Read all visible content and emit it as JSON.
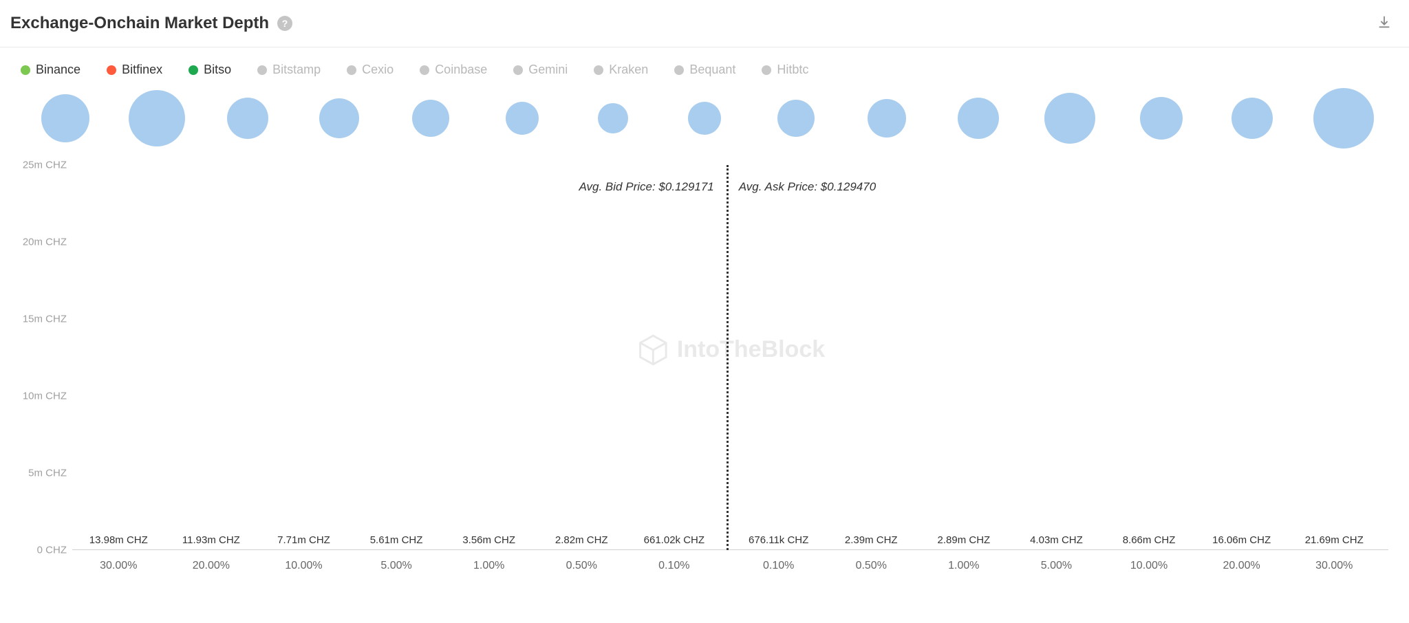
{
  "header": {
    "title": "Exchange-Onchain Market Depth",
    "help_tooltip": "?",
    "download_label": "Download"
  },
  "legend": [
    {
      "label": "Binance",
      "color": "#7cc850",
      "active": true
    },
    {
      "label": "Bitfinex",
      "color": "#ff5a3c",
      "active": true
    },
    {
      "label": "Bitso",
      "color": "#1ea850",
      "active": true
    },
    {
      "label": "Bitstamp",
      "color": "#c8c8c8",
      "active": false
    },
    {
      "label": "Cexio",
      "color": "#c8c8c8",
      "active": false
    },
    {
      "label": "Coinbase",
      "color": "#c8c8c8",
      "active": false
    },
    {
      "label": "Gemini",
      "color": "#c8c8c8",
      "active": false
    },
    {
      "label": "Kraken",
      "color": "#c8c8c8",
      "active": false
    },
    {
      "label": "Bequant",
      "color": "#c8c8c8",
      "active": false
    },
    {
      "label": "Hitbtc",
      "color": "#c8c8c8",
      "active": false
    }
  ],
  "bubbles": {
    "color": "#a9cdee",
    "items": [
      {
        "size": 70
      },
      {
        "size": 82
      },
      {
        "size": 60
      },
      {
        "size": 58
      },
      {
        "size": 54
      },
      {
        "size": 48
      },
      {
        "size": 44
      },
      {
        "size": 48
      },
      {
        "size": 54
      },
      {
        "size": 56
      },
      {
        "size": 60
      },
      {
        "size": 74
      },
      {
        "size": 62
      },
      {
        "size": 60
      },
      {
        "size": 88
      }
    ]
  },
  "chart": {
    "type": "bar",
    "y_max": 25,
    "y_unit": "m CHZ",
    "y_ticks": [
      0,
      5,
      10,
      15,
      20,
      25
    ],
    "y_tick_labels": [
      "0 CHZ",
      "5m CHZ",
      "10m CHZ",
      "15m CHZ",
      "20m CHZ",
      "25m CHZ"
    ],
    "x_labels": [
      "30.00%",
      "20.00%",
      "10.00%",
      "5.00%",
      "1.00%",
      "0.50%",
      "0.10%",
      "0.10%",
      "0.50%",
      "1.00%",
      "5.00%",
      "10.00%",
      "20.00%",
      "30.00%"
    ],
    "divider_after_index": 6,
    "avg_bid_label": "Avg. Bid Price: $0.129171",
    "avg_ask_label": "Avg. Ask Price: $0.129470",
    "bar_colors": {
      "main": "#7cc850",
      "secondary": "#ff5a3c"
    },
    "secondary_height_m": 0.18,
    "bars": [
      {
        "value_m": 13.98,
        "label": "13.98m CHZ"
      },
      {
        "value_m": 11.93,
        "label": "11.93m CHZ"
      },
      {
        "value_m": 7.71,
        "label": "7.71m CHZ"
      },
      {
        "value_m": 5.61,
        "label": "5.61m CHZ"
      },
      {
        "value_m": 3.56,
        "label": "3.56m CHZ"
      },
      {
        "value_m": 2.82,
        "label": "2.82m CHZ"
      },
      {
        "value_m": 0.661,
        "label": "661.02k CHZ"
      },
      {
        "value_m": 0.676,
        "label": "676.11k CHZ"
      },
      {
        "value_m": 2.39,
        "label": "2.39m CHZ"
      },
      {
        "value_m": 2.89,
        "label": "2.89m CHZ"
      },
      {
        "value_m": 4.03,
        "label": "4.03m CHZ"
      },
      {
        "value_m": 8.66,
        "label": "8.66m CHZ"
      },
      {
        "value_m": 16.06,
        "label": "16.06m CHZ"
      },
      {
        "value_m": 21.69,
        "label": "21.69m CHZ"
      }
    ],
    "background_color": "#ffffff",
    "axis_text_color": "#a0a0a0",
    "label_fontsize": 15
  },
  "watermark": {
    "text": "IntoTheBlock",
    "color": "#888888"
  }
}
